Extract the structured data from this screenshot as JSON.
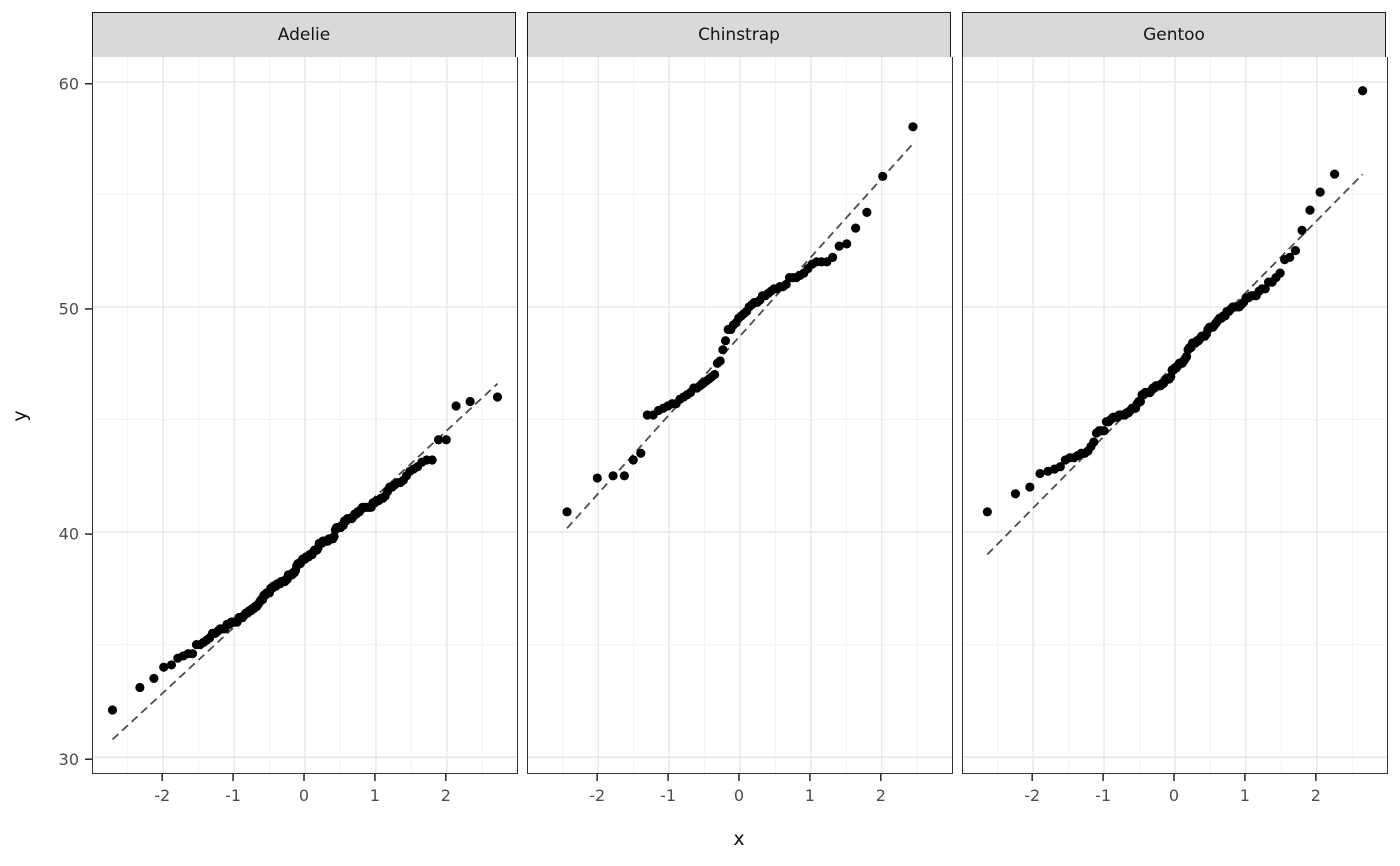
{
  "colors": {
    "background": "#FFFFFF",
    "panel_background": "#FFFFFF",
    "panel_border": "#333333",
    "grid_major": "#E7E7E7",
    "grid_minor": "#F3F3F3",
    "strip_fill": "#D9D9D9",
    "strip_border": "#1A1A1A",
    "strip_text": "#141414",
    "tick_mark": "#333333",
    "tick_label": "#4D4D4D",
    "axis_title": "#111111",
    "point": "#000000",
    "qq_line": "#4D4D4D"
  },
  "chart_data": {
    "type": "scatter",
    "subtype": "normal-qq",
    "title": "",
    "xlabel": "x",
    "ylabel": "y",
    "x_ticks": [
      -2,
      -1,
      0,
      1,
      2
    ],
    "y_ticks": [
      30,
      40,
      50,
      60
    ],
    "x_minor": [
      -2.5,
      -1.5,
      -0.5,
      0.5,
      1.5,
      2.5
    ],
    "y_minor": [
      35,
      45,
      55
    ],
    "xlim": [
      -2.99,
      2.99
    ],
    "ylim": [
      29.3,
      61.1
    ],
    "grid": "major+minor",
    "legend": "none",
    "point_radius": 4.6,
    "facets": [
      {
        "label": "Adelie",
        "n": 151,
        "qq_line": {
          "slope": 2.91,
          "intercept": 38.69,
          "style": "dashed"
        },
        "sample_values": [
          32.1,
          33.1,
          33.5,
          34.0,
          34.1,
          34.4,
          34.5,
          34.6,
          34.6,
          35.0,
          35.0,
          35.1,
          35.2,
          35.3,
          35.5,
          35.5,
          35.6,
          35.7,
          35.7,
          35.7,
          35.9,
          35.9,
          36.0,
          36.0,
          36.0,
          36.0,
          36.2,
          36.2,
          36.2,
          36.3,
          36.4,
          36.4,
          36.5,
          36.5,
          36.6,
          36.6,
          36.7,
          36.7,
          36.8,
          36.9,
          37.0,
          37.0,
          37.2,
          37.2,
          37.3,
          37.3,
          37.3,
          37.5,
          37.5,
          37.6,
          37.6,
          37.6,
          37.7,
          37.7,
          37.7,
          37.8,
          37.8,
          37.8,
          37.8,
          37.9,
          37.9,
          38.1,
          38.1,
          38.1,
          38.1,
          38.2,
          38.2,
          38.3,
          38.5,
          38.6,
          38.6,
          38.6,
          38.7,
          38.8,
          38.8,
          38.8,
          38.9,
          38.9,
          38.9,
          39.0,
          39.0,
          39.0,
          39.1,
          39.2,
          39.2,
          39.2,
          39.3,
          39.5,
          39.5,
          39.5,
          39.6,
          39.6,
          39.6,
          39.6,
          39.6,
          39.7,
          39.7,
          39.7,
          39.7,
          39.8,
          40.1,
          40.2,
          40.2,
          40.2,
          40.2,
          40.3,
          40.3,
          40.5,
          40.5,
          40.6,
          40.6,
          40.6,
          40.6,
          40.7,
          40.8,
          40.8,
          40.9,
          40.9,
          41.0,
          41.1,
          41.1,
          41.1,
          41.1,
          41.1,
          41.1,
          41.3,
          41.3,
          41.4,
          41.4,
          41.5,
          41.5,
          41.6,
          41.8,
          42.0,
          42.0,
          42.1,
          42.2,
          42.2,
          42.3,
          42.5,
          42.7,
          42.8,
          42.9,
          43.1,
          43.2,
          43.2,
          44.1,
          44.1,
          45.6,
          45.8,
          46.0
        ]
      },
      {
        "label": "Chinstrap",
        "n": 68,
        "qq_line": {
          "slope": 3.5,
          "intercept": 48.71,
          "style": "dashed"
        },
        "sample_values": [
          40.9,
          42.4,
          42.5,
          42.5,
          43.2,
          43.5,
          45.2,
          45.2,
          45.4,
          45.5,
          45.6,
          45.7,
          45.7,
          45.9,
          46.0,
          46.1,
          46.2,
          46.4,
          46.4,
          46.5,
          46.6,
          46.7,
          46.8,
          46.9,
          47.0,
          47.5,
          47.6,
          48.1,
          48.5,
          49.0,
          49.0,
          49.2,
          49.3,
          49.5,
          49.6,
          49.7,
          49.8,
          50.0,
          50.1,
          50.2,
          50.2,
          50.3,
          50.5,
          50.5,
          50.6,
          50.7,
          50.8,
          50.8,
          50.9,
          50.9,
          51.0,
          51.3,
          51.3,
          51.3,
          51.4,
          51.5,
          51.7,
          51.9,
          52.0,
          52.0,
          52.0,
          52.2,
          52.7,
          52.8,
          53.5,
          54.2,
          55.8,
          58.0
        ]
      },
      {
        "label": "Gentoo",
        "n": 123,
        "qq_line": {
          "slope": 3.19,
          "intercept": 47.45,
          "style": "dashed"
        },
        "sample_values": [
          40.9,
          41.7,
          42.0,
          42.6,
          42.7,
          42.8,
          42.9,
          43.2,
          43.3,
          43.3,
          43.4,
          43.5,
          43.5,
          43.6,
          43.8,
          44.0,
          44.4,
          44.5,
          44.5,
          44.5,
          44.9,
          44.9,
          45.0,
          45.1,
          45.1,
          45.1,
          45.2,
          45.2,
          45.2,
          45.2,
          45.3,
          45.3,
          45.4,
          45.5,
          45.5,
          45.5,
          45.7,
          45.8,
          45.8,
          46.1,
          46.1,
          46.2,
          46.2,
          46.2,
          46.2,
          46.3,
          46.4,
          46.4,
          46.5,
          46.5,
          46.5,
          46.5,
          46.6,
          46.6,
          46.7,
          46.8,
          46.8,
          46.8,
          46.9,
          47.2,
          47.2,
          47.3,
          47.3,
          47.4,
          47.5,
          47.5,
          47.5,
          47.6,
          47.7,
          47.8,
          48.1,
          48.2,
          48.2,
          48.4,
          48.4,
          48.4,
          48.5,
          48.5,
          48.6,
          48.7,
          48.7,
          48.7,
          48.8,
          49.0,
          49.1,
          49.1,
          49.1,
          49.2,
          49.3,
          49.4,
          49.5,
          49.5,
          49.6,
          49.6,
          49.8,
          49.8,
          49.9,
          50.0,
          50.0,
          50.0,
          50.0,
          50.1,
          50.2,
          50.4,
          50.4,
          50.5,
          50.5,
          50.5,
          50.7,
          50.8,
          50.8,
          51.1,
          51.1,
          51.3,
          51.5,
          52.1,
          52.2,
          52.5,
          53.4,
          54.3,
          55.1,
          55.9,
          59.6
        ]
      }
    ]
  }
}
